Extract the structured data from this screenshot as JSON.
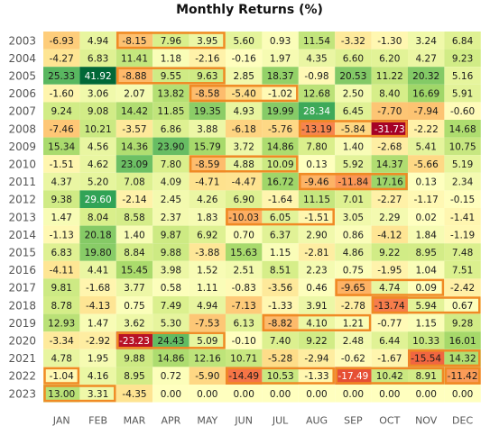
{
  "chart_data": {
    "type": "heatmap",
    "title": "Monthly Returns (%)",
    "xlabel": "",
    "ylabel": "",
    "columns": [
      "JAN",
      "FEB",
      "MAR",
      "APR",
      "MAY",
      "JUN",
      "JUL",
      "AUG",
      "SEP",
      "OCT",
      "NOV",
      "DEC"
    ],
    "rows": [
      "2003",
      "2004",
      "2005",
      "2006",
      "2007",
      "2008",
      "2009",
      "2010",
      "2011",
      "2012",
      "2013",
      "2014",
      "2015",
      "2016",
      "2017",
      "2018",
      "2019",
      "2020",
      "2021",
      "2022",
      "2023"
    ],
    "values": [
      [
        -6.93,
        4.94,
        -8.15,
        7.96,
        3.95,
        5.6,
        0.93,
        11.54,
        -3.32,
        -1.3,
        3.24,
        6.84
      ],
      [
        -4.27,
        6.83,
        11.41,
        1.18,
        -2.16,
        -0.16,
        1.97,
        4.35,
        6.6,
        6.2,
        4.27,
        9.23
      ],
      [
        25.33,
        41.92,
        -8.88,
        9.55,
        9.63,
        2.85,
        18.37,
        -0.98,
        20.53,
        11.22,
        20.32,
        5.16
      ],
      [
        -1.6,
        3.06,
        2.07,
        13.82,
        -8.58,
        -5.4,
        -1.02,
        12.68,
        2.5,
        8.4,
        16.69,
        5.91
      ],
      [
        9.24,
        9.08,
        14.42,
        11.85,
        19.35,
        4.93,
        19.99,
        28.34,
        6.45,
        -7.7,
        -7.94,
        -0.6
      ],
      [
        -7.46,
        10.21,
        -3.57,
        6.86,
        3.88,
        -6.18,
        -5.76,
        -13.19,
        -5.84,
        -31.73,
        -2.22,
        14.68
      ],
      [
        15.34,
        4.56,
        14.36,
        23.9,
        15.79,
        3.72,
        14.86,
        7.8,
        1.4,
        -2.68,
        5.41,
        10.75
      ],
      [
        -1.51,
        4.62,
        23.09,
        7.8,
        -8.59,
        4.88,
        10.09,
        0.13,
        5.92,
        14.37,
        -5.66,
        5.19
      ],
      [
        4.37,
        5.2,
        7.08,
        4.09,
        -4.71,
        -4.47,
        16.72,
        -9.46,
        -11.84,
        17.16,
        0.13,
        2.34
      ],
      [
        9.38,
        29.6,
        -2.14,
        2.45,
        4.26,
        6.9,
        -1.64,
        11.15,
        7.01,
        -2.27,
        -1.17,
        -0.15
      ],
      [
        1.47,
        8.04,
        8.58,
        2.37,
        1.83,
        -10.03,
        6.05,
        -1.51,
        3.05,
        2.29,
        0.02,
        -1.41
      ],
      [
        -1.13,
        20.18,
        1.4,
        9.87,
        6.92,
        0.7,
        6.37,
        2.9,
        0.86,
        -4.12,
        1.84,
        -1.19
      ],
      [
        6.83,
        19.8,
        8.84,
        9.88,
        -3.88,
        15.63,
        1.15,
        -2.81,
        4.86,
        9.22,
        8.95,
        7.48
      ],
      [
        -4.11,
        4.41,
        15.45,
        3.98,
        1.52,
        2.51,
        8.51,
        2.23,
        0.75,
        -1.95,
        1.04,
        7.51
      ],
      [
        9.81,
        -1.68,
        3.77,
        0.58,
        1.11,
        -0.83,
        -3.56,
        0.46,
        -9.65,
        4.74,
        0.09,
        -2.42
      ],
      [
        8.78,
        -4.13,
        0.75,
        7.49,
        4.94,
        -7.13,
        -1.33,
        3.91,
        -2.78,
        -13.74,
        5.94,
        0.67
      ],
      [
        12.93,
        1.47,
        3.62,
        5.3,
        -7.53,
        6.13,
        -8.82,
        4.1,
        1.21,
        -0.77,
        1.15,
        9.28
      ],
      [
        -3.34,
        -2.92,
        -23.23,
        24.43,
        5.09,
        -0.1,
        7.4,
        9.22,
        2.48,
        6.44,
        10.33,
        16.01
      ],
      [
        4.78,
        1.95,
        9.88,
        14.86,
        12.16,
        10.71,
        -5.28,
        -2.94,
        -0.62,
        -1.67,
        -15.54,
        14.32
      ],
      [
        -1.04,
        4.16,
        8.95,
        0.72,
        -5.9,
        -14.49,
        10.53,
        -1.33,
        -17.49,
        10.42,
        8.91,
        -11.42
      ],
      [
        13.0,
        3.31,
        -4.35,
        0.0,
        0.0,
        0.0,
        0.0,
        0.0,
        0.0,
        0.0,
        0.0,
        0.0
      ]
    ],
    "value_format": "0.00",
    "colormap": "red-yellow-green",
    "color_range": [
      -25,
      40
    ],
    "highlights_color": "#f08a24",
    "highlights": [
      {
        "row": "2003",
        "from": "MAR",
        "to": "MAY"
      },
      {
        "row": "2005",
        "from": "MAR",
        "to": "MAY"
      },
      {
        "row": "2006",
        "from": "MAY",
        "to": "JUL"
      },
      {
        "row": "2008",
        "from": "AUG",
        "to": "OCT"
      },
      {
        "row": "2010",
        "from": "MAY",
        "to": "JUL"
      },
      {
        "row": "2011",
        "from": "AUG",
        "to": "OCT"
      },
      {
        "row": "2013",
        "from": "JUN",
        "to": "AUG"
      },
      {
        "row": "2017",
        "from": "SEP",
        "to": "NOV"
      },
      {
        "row": "2018",
        "from": "OCT",
        "to": "DEC"
      },
      {
        "row": "2019",
        "from": "JUL",
        "to": "SEP"
      },
      {
        "row": "2020",
        "from": "MAR",
        "to": "MAY"
      },
      {
        "row": "2021",
        "from": "NOV",
        "to": "DEC"
      },
      {
        "row": "2022",
        "from": "JAN",
        "to": "JAN"
      },
      {
        "row": "2022",
        "from": "JUN",
        "to": "AUG"
      },
      {
        "row": "2022",
        "from": "SEP",
        "to": "NOV"
      },
      {
        "row": "2022",
        "from": "DEC",
        "to": "DEC"
      },
      {
        "row": "2023",
        "from": "JAN",
        "to": "FEB"
      }
    ],
    "grid": false,
    "legend": "none"
  }
}
